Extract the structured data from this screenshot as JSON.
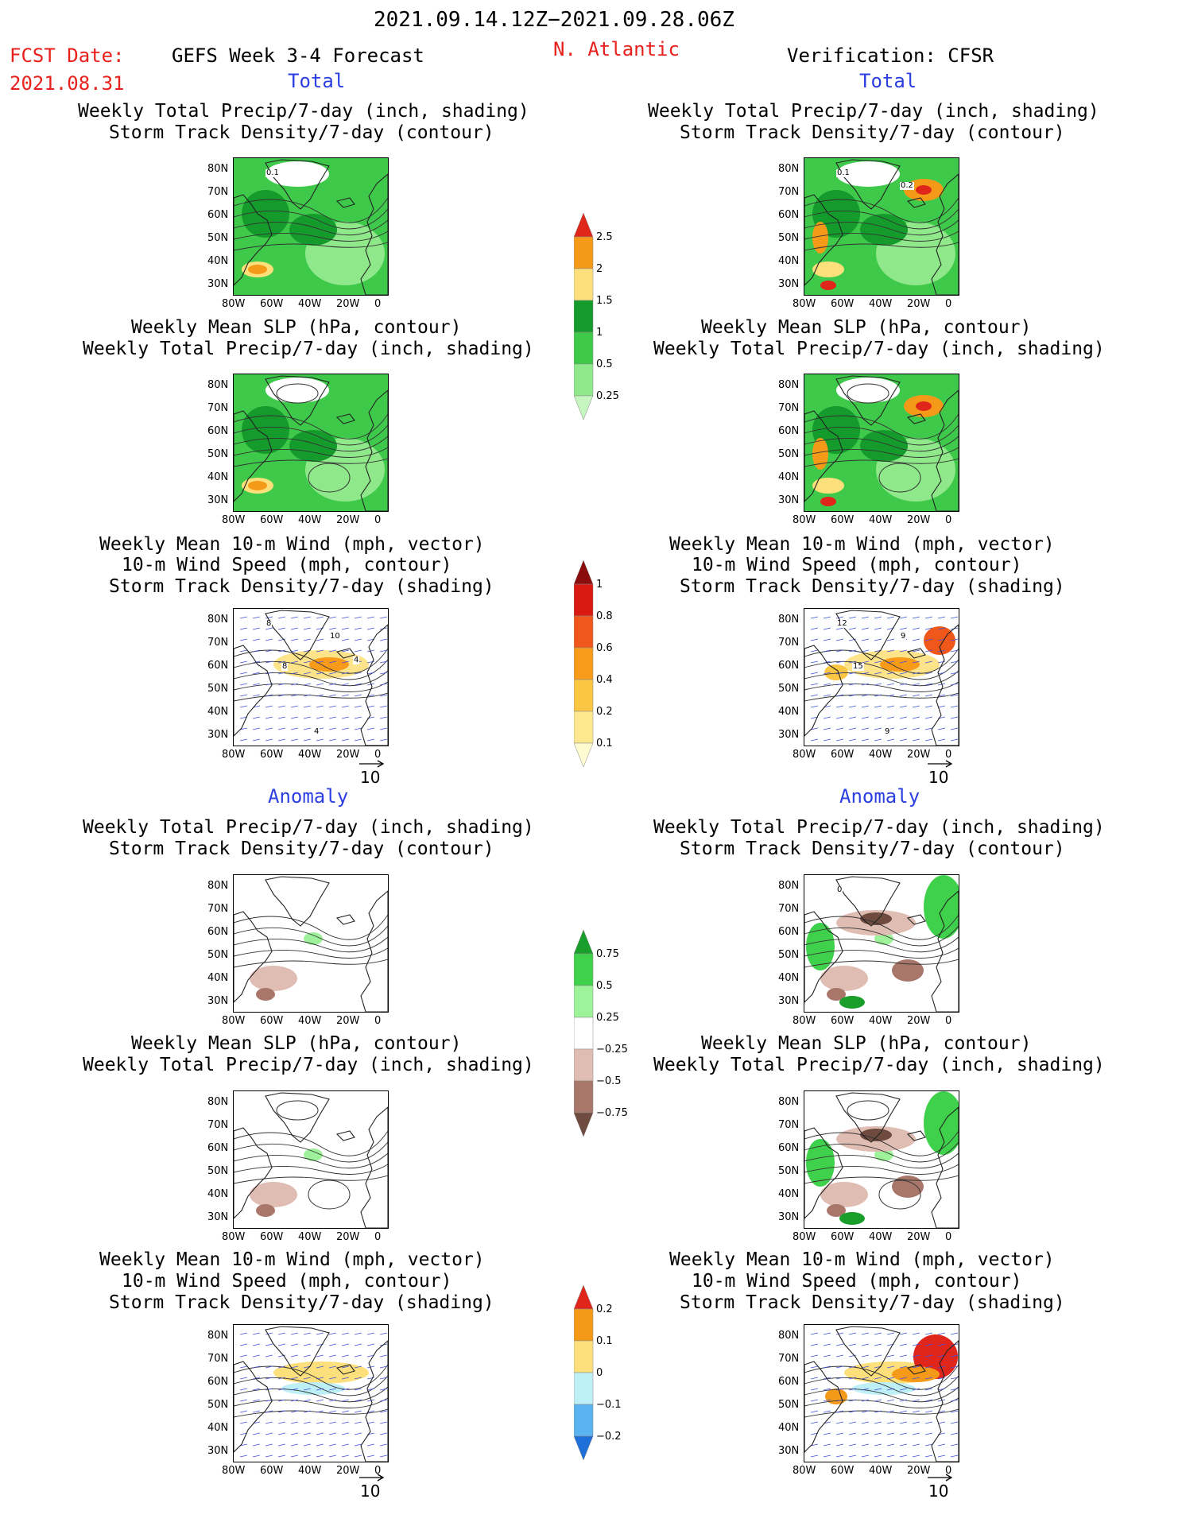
{
  "header": {
    "period": "2021.09.14.12Z−2021.09.28.06Z",
    "fcst_label": "FCST Date:",
    "fcst_date": "2021.08.31",
    "title": "GEFS Week 3-4 Forecast",
    "region": "N. Atlantic",
    "verification": "Verification: CFSR"
  },
  "sections": {
    "total": "Total",
    "anomaly": "Anomaly"
  },
  "titles": {
    "precip_storm": [
      "Weekly Total Precip/7-day (inch, shading)",
      "Storm Track Density/7-day (contour)"
    ],
    "slp_precip": [
      "Weekly Mean SLP (hPa, contour)",
      "Weekly Total Precip/7-day (inch, shading)"
    ],
    "wind_storm": [
      "Weekly Mean 10-m Wind (mph, vector)",
      "10-m Wind Speed (mph, contour)",
      "Storm Track Density/7-day (shading)"
    ]
  },
  "axes": {
    "lat": [
      "80N",
      "70N",
      "60N",
      "50N",
      "40N",
      "30N"
    ],
    "lon": [
      "80W",
      "60W",
      "40W",
      "20W",
      "0"
    ]
  },
  "vector_ref": "10",
  "map_labels": {
    "fc_precip_total": [
      "0.1"
    ],
    "obs_precip_total": [
      "0.1",
      "0.2"
    ],
    "fc_wind_total": [
      "8",
      "10",
      "8",
      "4",
      "4"
    ],
    "obs_wind_total": [
      "12",
      "9",
      "15",
      "9"
    ],
    "obs_precip_anom": [
      "0"
    ]
  },
  "colorbars": {
    "precip_total": {
      "labels": [
        "2.5",
        "2",
        "1.5",
        "1",
        "0.5",
        "0.25"
      ],
      "colors": [
        "#e0251b",
        "#f59a18",
        "#fde07c",
        "#159a2c",
        "#3fc94b",
        "#8fe88a",
        "#c5f6c0"
      ]
    },
    "storm_total": {
      "labels": [
        "1",
        "0.8",
        "0.6",
        "0.4",
        "0.2",
        "0.1"
      ],
      "colors": [
        "#8a0c0c",
        "#d91a12",
        "#f0571a",
        "#f89a1a",
        "#fcc645",
        "#fde890",
        "#fffbd0"
      ]
    },
    "precip_anom": {
      "labels": [
        "0.75",
        "0.5",
        "0.25",
        "−0.25",
        "−0.5",
        "−0.75"
      ],
      "colors": [
        "#1a9e2b",
        "#3fd14b",
        "#9ef29a",
        "#ffffff",
        "#e0bdb2",
        "#a8776a",
        "#6f4a3e"
      ]
    },
    "storm_anom": {
      "labels": [
        "0.2",
        "0.1",
        "0",
        "−0.1",
        "−0.2"
      ],
      "colors": [
        "#e0251b",
        "#f59a18",
        "#fde07c",
        "#bdeff7",
        "#5ab3ee",
        "#1e6fd8"
      ]
    }
  },
  "colors": {
    "land_line": "#222222",
    "wind_vector": "#4050e0",
    "contour": "#333333"
  }
}
